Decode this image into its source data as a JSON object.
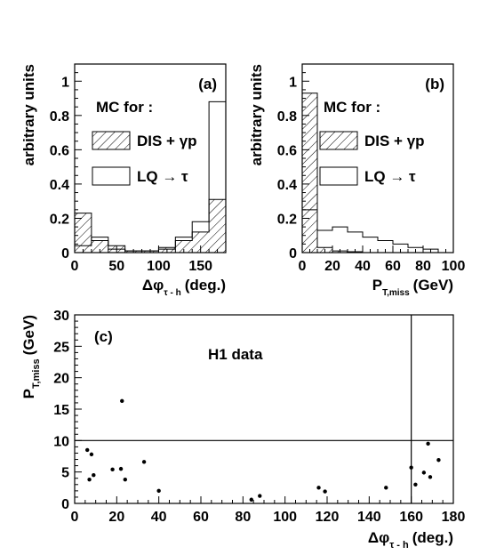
{
  "chart_data": [
    {
      "type": "bar",
      "panel": "(a)",
      "ylabel": "arbitrary units",
      "xlabel": {
        "main": "Δφ",
        "sub": "τ - h",
        "unit": "(deg.)"
      },
      "xlim": [
        0,
        180
      ],
      "ylim": [
        0,
        1.1
      ],
      "xticks": [
        0,
        50,
        100,
        150
      ],
      "yticks": [
        0,
        0.2,
        0.4,
        0.6,
        0.8,
        1
      ],
      "ytick_labels": [
        "0",
        "0.2",
        "0.4",
        "0.6",
        "0.8",
        "1"
      ],
      "legend": {
        "title": "MC for :",
        "entries": [
          "DIS + γp",
          "LQ → τ"
        ]
      },
      "bin_edges": [
        0,
        20,
        40,
        60,
        80,
        100,
        120,
        140,
        160,
        180
      ],
      "series": [
        {
          "name": "DIS + γp",
          "style": "hatched",
          "values": [
            0.23,
            0.07,
            0.04,
            0.01,
            0.01,
            0.03,
            0.07,
            0.12,
            0.31
          ]
        },
        {
          "name": "LQ → τ",
          "style": "open",
          "values": [
            0.04,
            0.09,
            0.02,
            0.01,
            0.01,
            0.02,
            0.09,
            0.18,
            0.88
          ]
        }
      ]
    },
    {
      "type": "bar",
      "panel": "(b)",
      "ylabel": "arbitrary units",
      "xlabel": {
        "main": "P",
        "sub": "T,miss",
        "unit": "(GeV)"
      },
      "xlim": [
        0,
        100
      ],
      "ylim": [
        0,
        1.1
      ],
      "xticks": [
        0,
        20,
        40,
        60,
        80,
        100
      ],
      "yticks": [
        0,
        0.2,
        0.4,
        0.6,
        0.8,
        1
      ],
      "ytick_labels": [
        "0",
        "0.2",
        "0.4",
        "0.6",
        "0.8",
        "1"
      ],
      "legend": {
        "title": "MC for :",
        "entries": [
          "DIS + γp",
          "LQ → τ"
        ]
      },
      "bin_edges": [
        0,
        10,
        20,
        30,
        40,
        50,
        60,
        70,
        80,
        90,
        100
      ],
      "series": [
        {
          "name": "DIS + γp",
          "style": "hatched",
          "values": [
            0.93,
            0.03,
            0.01,
            0.005,
            0,
            0,
            0,
            0,
            0,
            0
          ]
        },
        {
          "name": "LQ → τ",
          "style": "open",
          "values": [
            0.25,
            0.13,
            0.15,
            0.12,
            0.09,
            0.07,
            0.05,
            0.03,
            0.02,
            0
          ]
        }
      ]
    },
    {
      "type": "scatter",
      "panel": "(c)",
      "annotation": "H1 data",
      "ylabel": {
        "main": "P",
        "sub": "T,miss",
        "unit": "(GeV)"
      },
      "xlabel": {
        "main": "Δφ",
        "sub": "τ - h",
        "unit": "(deg.)"
      },
      "xlim": [
        0,
        180
      ],
      "ylim": [
        0,
        30
      ],
      "xticks": [
        0,
        20,
        40,
        60,
        80,
        100,
        120,
        140,
        160,
        180
      ],
      "yticks": [
        0,
        5,
        10,
        15,
        20,
        25,
        30
      ],
      "cut_lines": {
        "x": 160,
        "y": 10
      },
      "points": [
        [
          6,
          8.5
        ],
        [
          8,
          7.8
        ],
        [
          7,
          3.8
        ],
        [
          9,
          4.5
        ],
        [
          18,
          5.4
        ],
        [
          22,
          5.5
        ],
        [
          24,
          3.8
        ],
        [
          22.5,
          16.3
        ],
        [
          33,
          6.6
        ],
        [
          40,
          2.0
        ],
        [
          84,
          0.6
        ],
        [
          88,
          1.2
        ],
        [
          116,
          2.5
        ],
        [
          119,
          1.9
        ],
        [
          148,
          2.5
        ],
        [
          160,
          5.7
        ],
        [
          162,
          3.0
        ],
        [
          166,
          4.9
        ],
        [
          168,
          9.5
        ],
        [
          169,
          4.2
        ],
        [
          173,
          6.9
        ]
      ]
    }
  ]
}
